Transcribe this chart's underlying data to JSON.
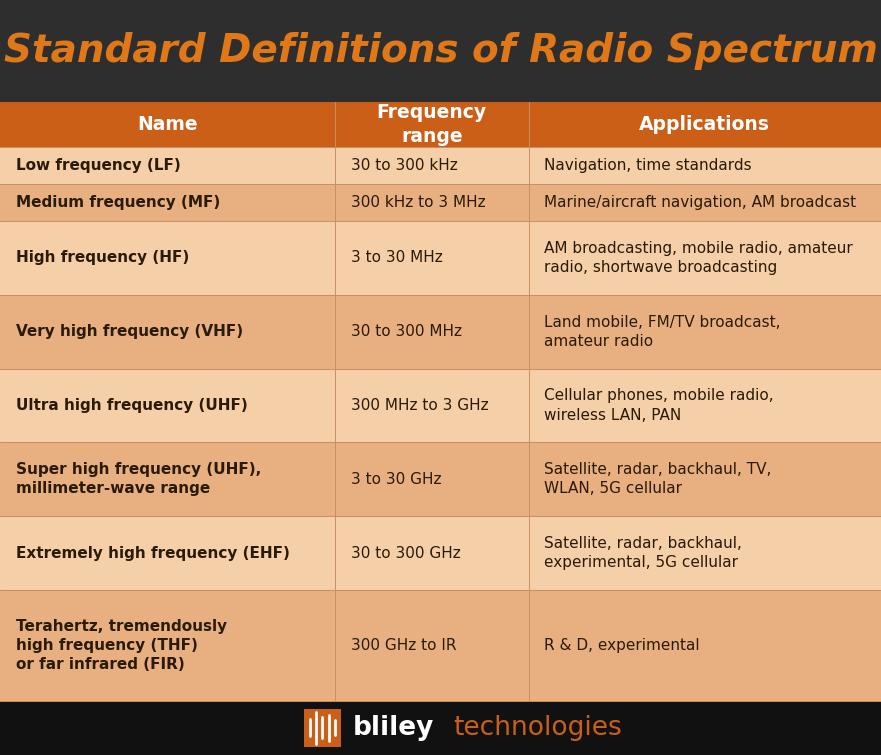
{
  "title": "Standard Definitions of Radio Spectrum",
  "title_bg": "#2e2e2e",
  "title_color": "#e07818",
  "header_bg": "#cc5f18",
  "header_color": "#ffffff",
  "header_cols": [
    "Name",
    "Frequency\nrange",
    "Applications"
  ],
  "row_bg_light": "#f5cfa8",
  "row_bg_dark": "#e8b080",
  "row_text_color": "#2a1a08",
  "divider_color": "#c89060",
  "footer_bg": "#111111",
  "col_splits": [
    0.38,
    0.6
  ],
  "rows": [
    {
      "name": "Low frequency (LF)",
      "freq": "30 to 300 kHz",
      "apps": "Navigation, time standards",
      "lines": 1
    },
    {
      "name": "Medium frequency (MF)",
      "freq": "300 kHz to 3 MHz",
      "apps": "Marine/aircraft navigation, AM broadcast",
      "lines": 1
    },
    {
      "name": "High frequency (HF)",
      "freq": "3 to 30 MHz",
      "apps": "AM broadcasting, mobile radio, amateur\nradio, shortwave broadcasting",
      "lines": 2
    },
    {
      "name": "Very high frequency (VHF)",
      "freq": "30 to 300 MHz",
      "apps": "Land mobile, FM/TV broadcast,\namateur radio",
      "lines": 2
    },
    {
      "name": "Ultra high frequency (UHF)",
      "freq": "300 MHz to 3 GHz",
      "apps": "Cellular phones, mobile radio,\nwireless LAN, PAN",
      "lines": 2
    },
    {
      "name": "Super high frequency (UHF),\nmillimeter-wave range",
      "freq": "3 to 30 GHz",
      "apps": "Satellite, radar, backhaul, TV,\nWLAN, 5G cellular",
      "lines": 2
    },
    {
      "name": "Extremely high frequency (EHF)",
      "freq": "30 to 300 GHz",
      "apps": "Satellite, radar, backhaul,\nexperimental, 5G cellular",
      "lines": 2
    },
    {
      "name": "Terahertz, tremendously\nhigh frequency (THF)\nor far infrared (FIR)",
      "freq": "300 GHz to IR",
      "apps": "R & D, experimental",
      "lines": 3
    }
  ]
}
